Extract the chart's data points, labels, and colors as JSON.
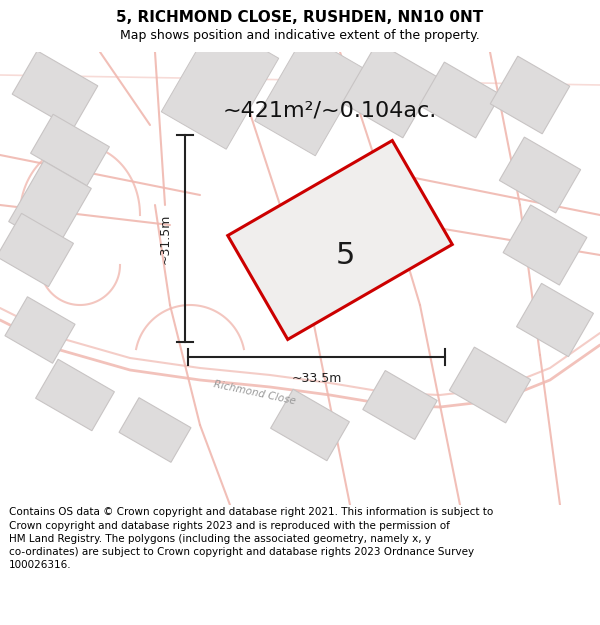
{
  "title_line1": "5, RICHMOND CLOSE, RUSHDEN, NN10 0NT",
  "title_line2": "Map shows position and indicative extent of the property.",
  "area_label": "~421m²/~0.104ac.",
  "width_label": "~33.5m",
  "height_label": "~31.5m",
  "property_number": "5",
  "footer_text": "Contains OS data © Crown copyright and database right 2021. This information is subject to Crown copyright and database rights 2023 and is reproduced with the permission of HM Land Registry. The polygons (including the associated geometry, namely x, y co-ordinates) are subject to Crown copyright and database rights 2023 Ordnance Survey 100026316.",
  "map_bg": "#f7f6f6",
  "road_color": "#f0b8b0",
  "road_edge": "#e8a09a",
  "building_color": "#dedcdc",
  "building_edge": "#c8c4c4",
  "plot_color": "#cc0000",
  "plot_fill": "#f0eeed",
  "dim_line_color": "#222222",
  "street_label": "Richmond Close",
  "fig_width": 6.0,
  "fig_height": 6.25,
  "title_fontsize": 11,
  "subtitle_fontsize": 9,
  "area_fontsize": 16,
  "dim_fontsize": 9,
  "footer_fontsize": 7.5
}
